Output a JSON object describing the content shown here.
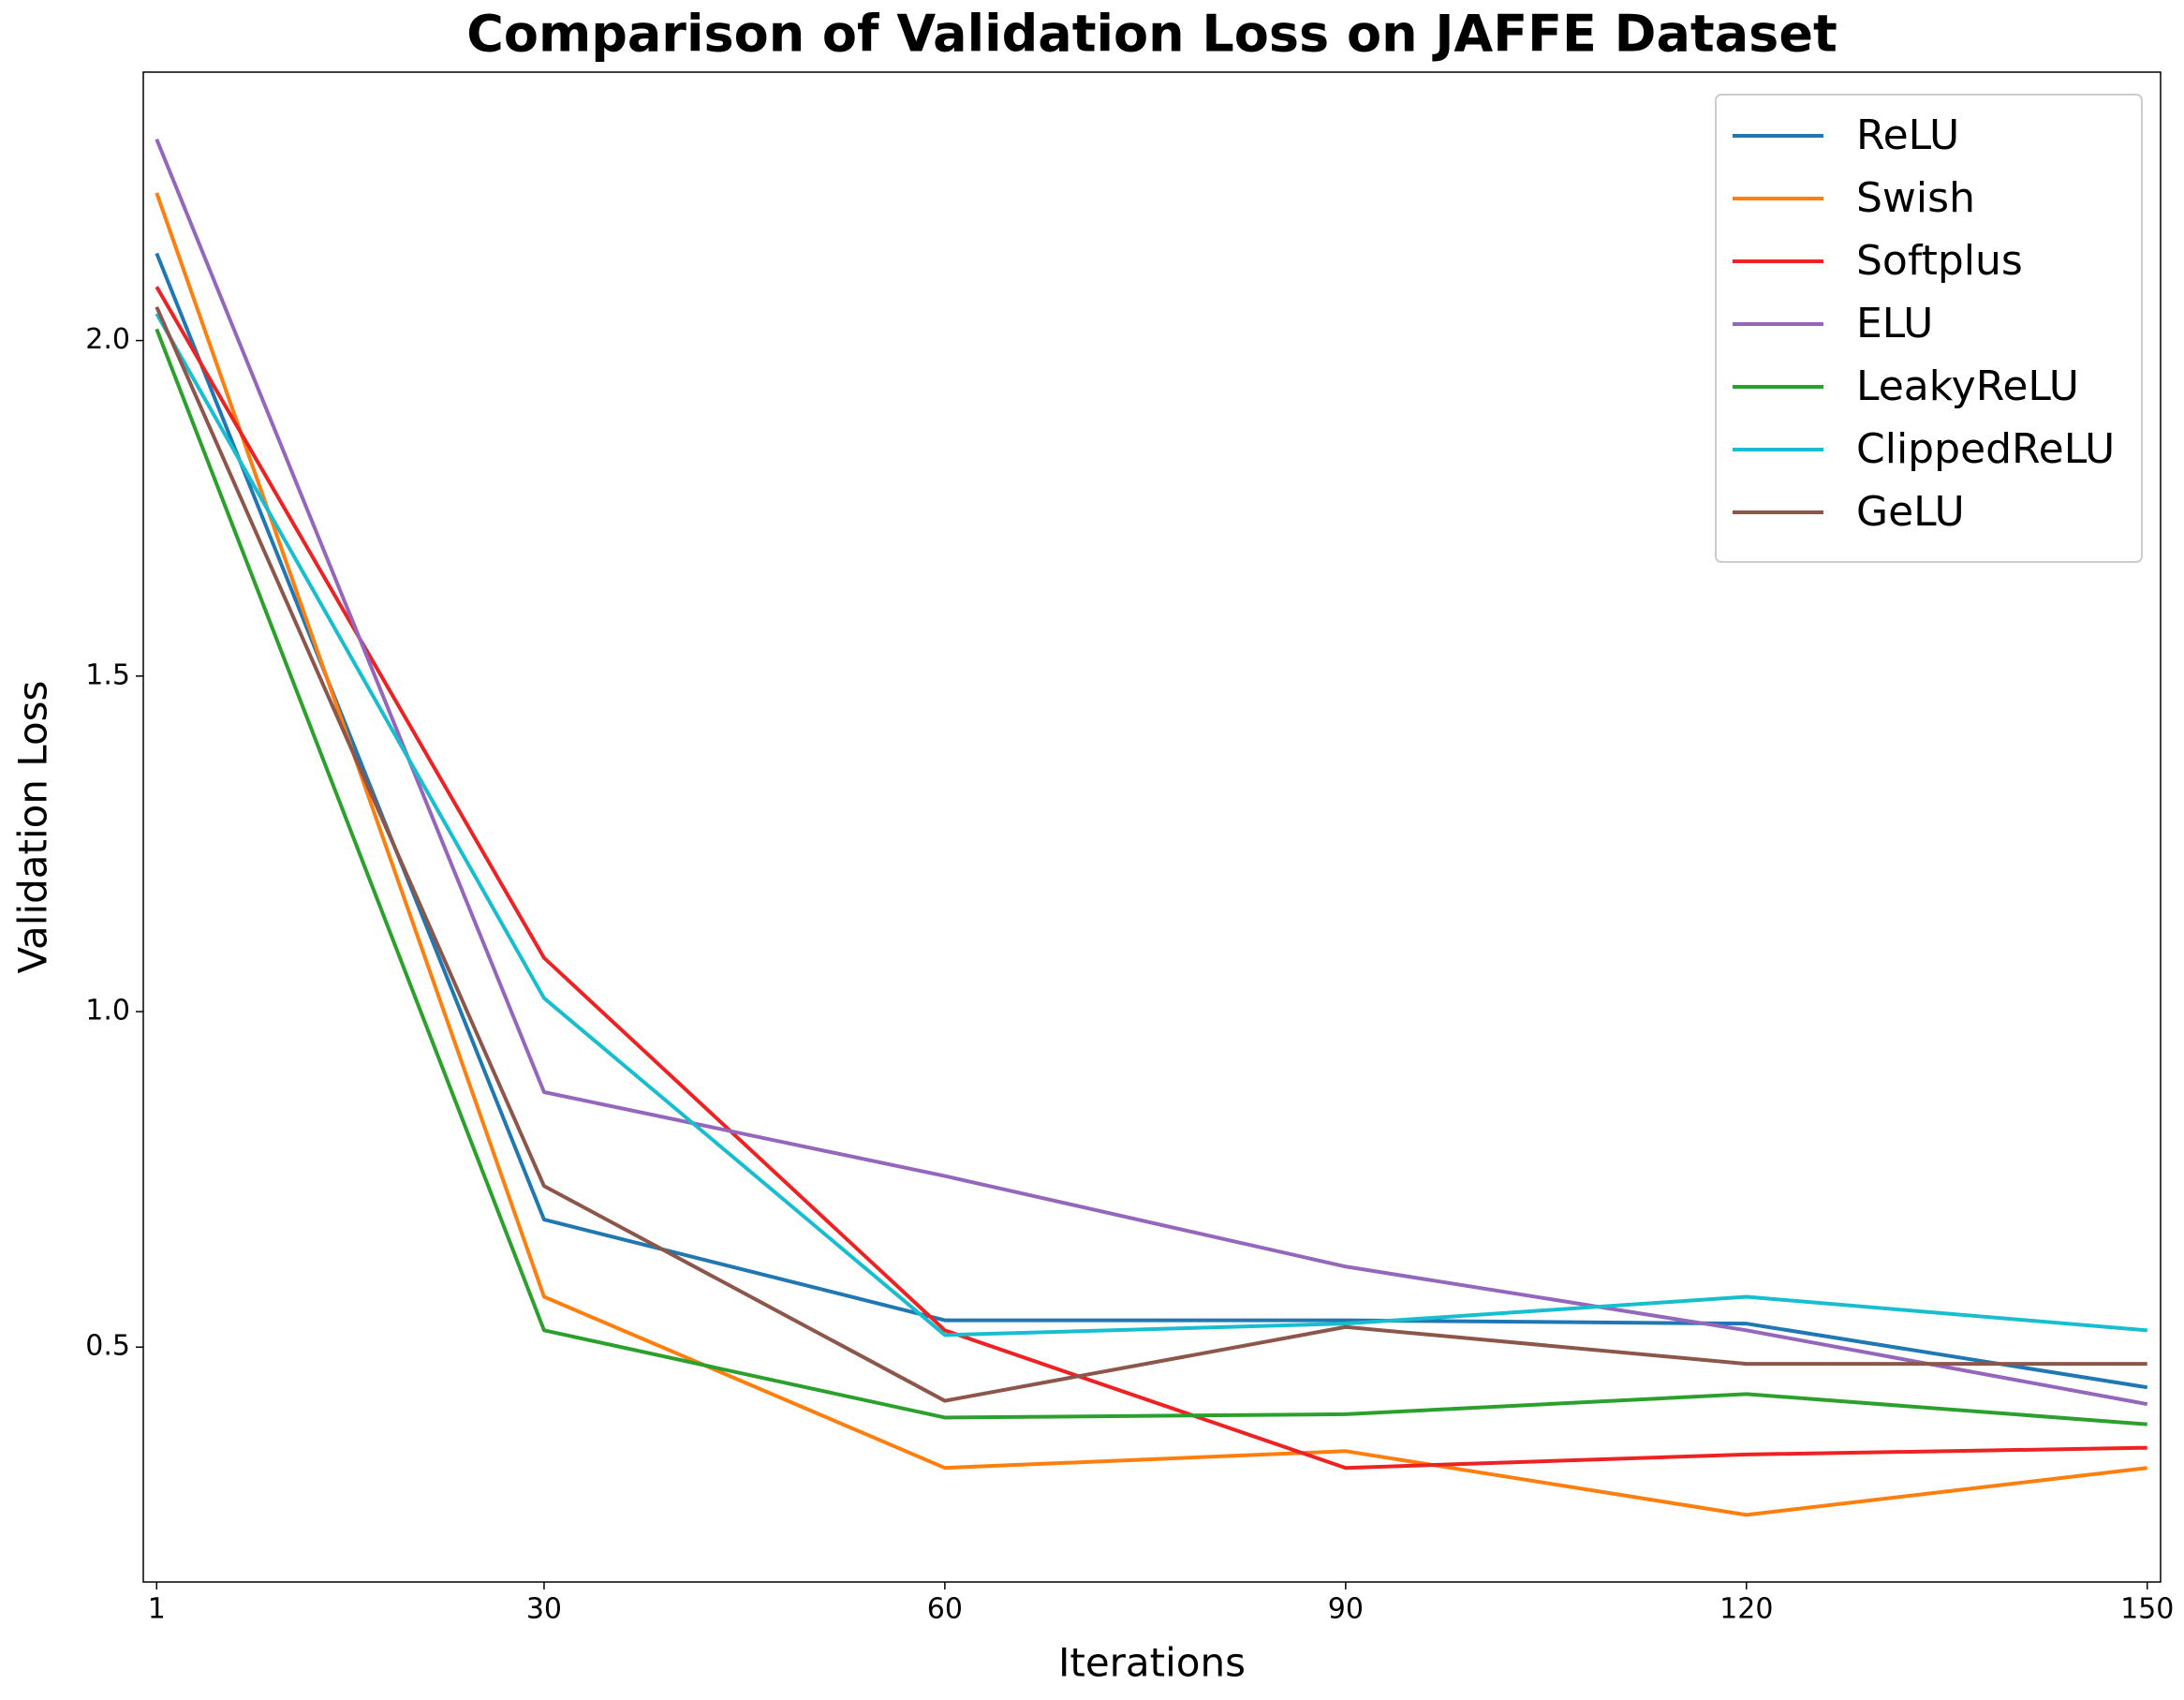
{
  "chart_data": {
    "type": "line",
    "title": "Comparison of Validation Loss on JAFFE Dataset",
    "x_label": "Iterations",
    "y_label": "Validation Loss",
    "x": [
      1,
      30,
      60,
      90,
      120,
      150
    ],
    "series": [
      {
        "name": "ReLU",
        "color": "#1f77b4",
        "values": [
          2.13,
          0.69,
          0.54,
          0.54,
          0.535,
          0.44
        ]
      },
      {
        "name": "Swish",
        "color": "#ff7f0e",
        "values": [
          2.22,
          0.575,
          0.32,
          0.345,
          0.25,
          0.32
        ]
      },
      {
        "name": "Softplus",
        "color": "#ee2222",
        "values": [
          2.08,
          1.08,
          0.525,
          0.32,
          0.34,
          0.35
        ]
      },
      {
        "name": "ELU",
        "color": "#9467bd",
        "values": [
          2.3,
          0.88,
          0.755,
          0.62,
          0.525,
          0.415
        ]
      },
      {
        "name": "LeakyReLU",
        "color": "#2ca02c",
        "values": [
          2.017,
          0.525,
          0.395,
          0.4,
          0.43,
          0.385
        ]
      },
      {
        "name": "ClippedReLU",
        "color": "#17becf",
        "values": [
          2.04,
          1.02,
          0.518,
          0.535,
          0.575,
          0.525
        ]
      },
      {
        "name": "GeLU",
        "color": "#8c564b",
        "values": [
          2.05,
          0.74,
          0.42,
          0.53,
          0.475,
          0.475
        ]
      }
    ],
    "xlim": [
      0,
      151
    ],
    "xticks": [
      1,
      30,
      60,
      90,
      120,
      150
    ],
    "ylim": [
      0.15,
      2.4
    ],
    "yticks": [
      0.5,
      {
        "value": 1,
        "label": "1.0"
      },
      1.5,
      {
        "value": 2,
        "label": "2.0"
      }
    ],
    "legend": "upper right",
    "grid": false
  }
}
